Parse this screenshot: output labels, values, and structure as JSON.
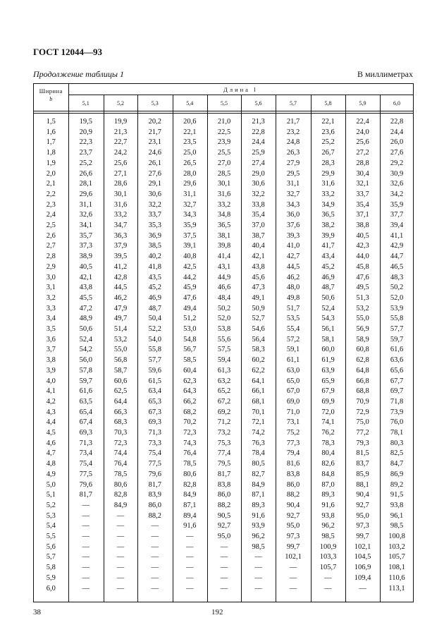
{
  "header": {
    "doc_title": "ГОСТ 12044—93",
    "continuation": "Продолжение таблицы 1",
    "units": "В миллиметрах"
  },
  "table": {
    "row_header_line1": "Ширина",
    "row_header_line2": "b",
    "group_header": "Длина l",
    "columns": [
      "5,1",
      "5,2",
      "5,3",
      "5,4",
      "5,5",
      "5,6",
      "5,7",
      "5,8",
      "5,9",
      "6,0"
    ],
    "rows": [
      [
        "1,5",
        "19,5",
        "19,9",
        "20,2",
        "20,6",
        "21,0",
        "21,3",
        "21,7",
        "22,1",
        "22,4",
        "22,8"
      ],
      [
        "1,6",
        "20,9",
        "21,3",
        "21,7",
        "22,1",
        "22,5",
        "22,8",
        "23,2",
        "23,6",
        "24,0",
        "24,4"
      ],
      [
        "1,7",
        "22,3",
        "22,7",
        "23,1",
        "23,5",
        "23,9",
        "24,4",
        "24,8",
        "25,2",
        "25,6",
        "26,0"
      ],
      [
        "1,8",
        "23,7",
        "24,2",
        "24,6",
        "25,0",
        "25,5",
        "25,9",
        "26,3",
        "26,7",
        "27,2",
        "27,6"
      ],
      [
        "1,9",
        "25,2",
        "25,6",
        "26,1",
        "26,5",
        "27,0",
        "27,4",
        "27,9",
        "28,3",
        "28,8",
        "29,2"
      ],
      [
        "2,0",
        "26,6",
        "27,1",
        "27,6",
        "28,0",
        "28,5",
        "29,0",
        "29,5",
        "29,9",
        "30,4",
        "30,9"
      ],
      [
        "2,1",
        "28,1",
        "28,6",
        "29,1",
        "29,6",
        "30,1",
        "30,6",
        "31,1",
        "31,6",
        "32,1",
        "32,6"
      ],
      [
        "2,2",
        "29,6",
        "30,1",
        "30,6",
        "31,1",
        "31,6",
        "32,2",
        "32,7",
        "33,2",
        "33,7",
        "34,2"
      ],
      [
        "2,3",
        "31,1",
        "31,6",
        "32,2",
        "32,7",
        "33,2",
        "33,8",
        "34,3",
        "34,9",
        "35,4",
        "35,9"
      ],
      [
        "2,4",
        "32,6",
        "33,2",
        "33,7",
        "34,3",
        "34,8",
        "35,4",
        "36,0",
        "36,5",
        "37,1",
        "37,7"
      ],
      [
        "2,5",
        "34,1",
        "34,7",
        "35,3",
        "35,9",
        "36,5",
        "37,0",
        "37,6",
        "38,2",
        "38,8",
        "39,4"
      ],
      [
        "2,6",
        "35,7",
        "36,3",
        "36,9",
        "37,5",
        "38,1",
        "38,7",
        "39,3",
        "39,9",
        "40,5",
        "41,1"
      ],
      [
        "2,7",
        "37,3",
        "37,9",
        "38,5",
        "39,1",
        "39,8",
        "40,4",
        "41,0",
        "41,7",
        "42,3",
        "42,9"
      ],
      [
        "2,8",
        "38,9",
        "39,5",
        "40,2",
        "40,8",
        "41,4",
        "42,1",
        "42,7",
        "43,4",
        "44,0",
        "44,7"
      ],
      [
        "2,9",
        "40,5",
        "41,2",
        "41,8",
        "42,5",
        "43,1",
        "43,8",
        "44,5",
        "45,2",
        "45,8",
        "46,5"
      ],
      [
        "3,0",
        "42,1",
        "42,8",
        "43,5",
        "44,2",
        "44,9",
        "45,6",
        "46,2",
        "46,9",
        "47,6",
        "48,3"
      ],
      [
        "3,1",
        "43,8",
        "44,5",
        "45,2",
        "45,9",
        "46,6",
        "47,3",
        "48,0",
        "48,7",
        "49,5",
        "50,2"
      ],
      [
        "3,2",
        "45,5",
        "46,2",
        "46,9",
        "47,6",
        "48,4",
        "49,1",
        "49,8",
        "50,6",
        "51,3",
        "52,0"
      ],
      [
        "3,3",
        "47,2",
        "47,9",
        "48,7",
        "49,4",
        "50,2",
        "50,9",
        "51,7",
        "52,4",
        "53,2",
        "53,9"
      ],
      [
        "3,4",
        "48,9",
        "49,7",
        "50,4",
        "51,2",
        "52,0",
        "52,7",
        "53,5",
        "54,3",
        "55,0",
        "55,8"
      ],
      [
        "3,5",
        "50,6",
        "51,4",
        "52,2",
        "53,0",
        "53,8",
        "54,6",
        "55,4",
        "56,1",
        "56,9",
        "57,7"
      ],
      [
        "3,6",
        "52,4",
        "53,2",
        "54,0",
        "54,8",
        "55,6",
        "56,4",
        "57,2",
        "58,1",
        "58,9",
        "59,7"
      ],
      [
        "3,7",
        "54,2",
        "55,0",
        "55,8",
        "56,7",
        "57,5",
        "58,3",
        "59,1",
        "60,0",
        "60,8",
        "61,6"
      ],
      [
        "3,8",
        "56,0",
        "56,8",
        "57,7",
        "58,5",
        "59,4",
        "60,2",
        "61,1",
        "61,9",
        "62,8",
        "63,6"
      ],
      [
        "3,9",
        "57,8",
        "58,7",
        "59,6",
        "60,4",
        "61,3",
        "62,2",
        "63,0",
        "63,9",
        "64,8",
        "65,6"
      ],
      [
        "4,0",
        "59,7",
        "60,6",
        "61,5",
        "62,3",
        "63,2",
        "64,1",
        "65,0",
        "65,9",
        "66,8",
        "67,7"
      ],
      [
        "4,1",
        "61,6",
        "62,5",
        "63,4",
        "64,3",
        "65,2",
        "66,1",
        "67,0",
        "67,9",
        "68,8",
        "69,7"
      ],
      [
        "4,2",
        "63,5",
        "64,4",
        "65,3",
        "66,2",
        "67,2",
        "68,1",
        "69,0",
        "69,9",
        "70,9",
        "71,8"
      ],
      [
        "4,3",
        "65,4",
        "66,3",
        "67,3",
        "68,2",
        "69,2",
        "70,1",
        "71,0",
        "72,0",
        "72,9",
        "73,9"
      ],
      [
        "4,4",
        "67,4",
        "68,3",
        "69,3",
        "70,2",
        "71,2",
        "72,1",
        "73,1",
        "74,1",
        "75,0",
        "76,0"
      ],
      [
        "4,5",
        "69,3",
        "70,3",
        "71,3",
        "72,3",
        "73,2",
        "74,2",
        "75,2",
        "76,2",
        "77,2",
        "78,1"
      ],
      [
        "4,6",
        "71,3",
        "72,3",
        "73,3",
        "74,3",
        "75,3",
        "76,3",
        "77,3",
        "78,3",
        "79,3",
        "80,3"
      ],
      [
        "4,7",
        "73,4",
        "74,4",
        "75,4",
        "76,4",
        "77,4",
        "78,4",
        "79,4",
        "80,4",
        "81,5",
        "82,5"
      ],
      [
        "4,8",
        "75,4",
        "76,4",
        "77,5",
        "78,5",
        "79,5",
        "80,5",
        "81,6",
        "82,6",
        "83,7",
        "84,7"
      ],
      [
        "4,9",
        "77,5",
        "78,5",
        "79,6",
        "80,6",
        "81,7",
        "82,7",
        "83,8",
        "84,8",
        "85,9",
        "86,9"
      ],
      [
        "5,0",
        "79,6",
        "80,6",
        "81,7",
        "82,8",
        "83,8",
        "84,9",
        "86,0",
        "87,0",
        "88,1",
        "89,2"
      ],
      [
        "5,1",
        "81,7",
        "82,8",
        "83,9",
        "84,9",
        "86,0",
        "87,1",
        "88,2",
        "89,3",
        "90,4",
        "91,5"
      ],
      [
        "5,2",
        "—",
        "84,9",
        "86,0",
        "87,1",
        "88,2",
        "89,3",
        "90,4",
        "91,6",
        "92,7",
        "93,8"
      ],
      [
        "5,3",
        "—",
        "—",
        "88,2",
        "89,4",
        "90,5",
        "91,6",
        "92,7",
        "93,8",
        "95,0",
        "96,1"
      ],
      [
        "5,4",
        "—",
        "—",
        "—",
        "91,6",
        "92,7",
        "93,9",
        "95,0",
        "96,2",
        "97,3",
        "98,5"
      ],
      [
        "5,5",
        "—",
        "—",
        "—",
        "—",
        "95,0",
        "96,2",
        "97,3",
        "98,5",
        "99,7",
        "100,8"
      ],
      [
        "5,6",
        "—",
        "—",
        "—",
        "—",
        "—",
        "98,5",
        "99,7",
        "100,9",
        "102,1",
        "103,2"
      ],
      [
        "5,7",
        "—",
        "—",
        "—",
        "—",
        "—",
        "—",
        "102,1",
        "103,3",
        "104,5",
        "105,7"
      ],
      [
        "5,8",
        "—",
        "—",
        "—",
        "—",
        "—",
        "—",
        "—",
        "105,7",
        "106,9",
        "108,1"
      ],
      [
        "5,9",
        "—",
        "—",
        "—",
        "—",
        "—",
        "—",
        "—",
        "—",
        "109,4",
        "110,6"
      ],
      [
        "6,0",
        "—",
        "—",
        "—",
        "—",
        "—",
        "—",
        "—",
        "—",
        "—",
        "113,1"
      ]
    ]
  },
  "footer": {
    "page_left": "38",
    "page_center": "192"
  }
}
